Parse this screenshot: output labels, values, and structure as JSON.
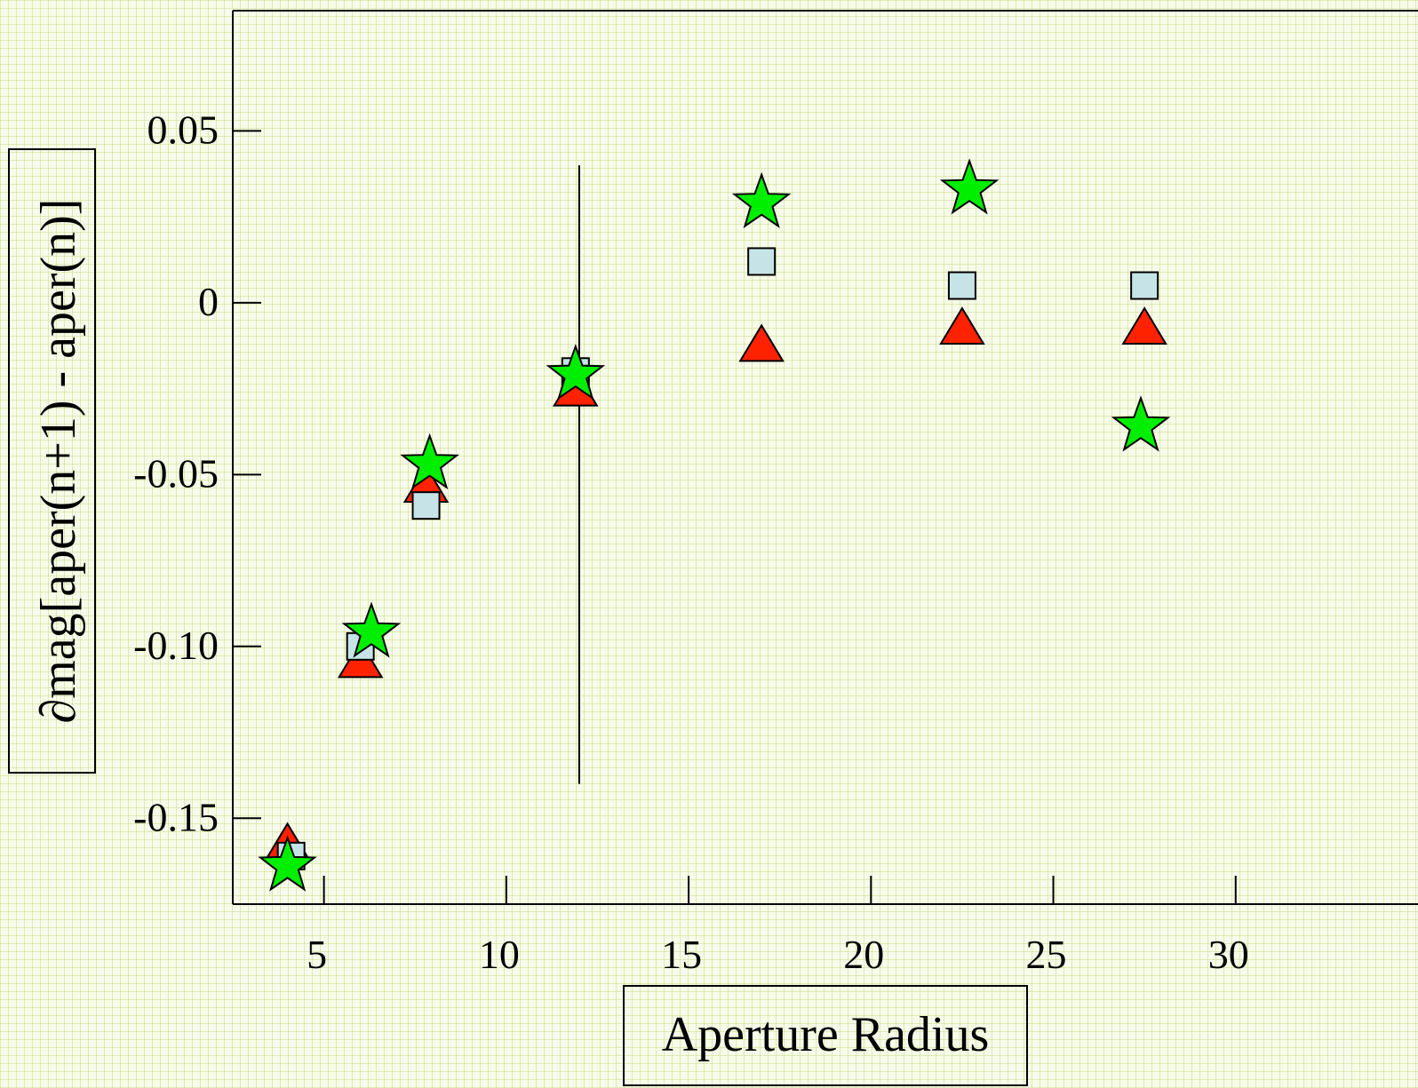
{
  "chart_data": {
    "type": "scatter",
    "xlabel": "Aperture Radius",
    "ylabel": "∂mag[aper(n+1) - aper(n)]",
    "xlim": [
      2.5,
      35
    ],
    "ylim": [
      -0.175,
      0.085
    ],
    "x_ticks": [
      "5",
      "10",
      "15",
      "20",
      "25",
      "30"
    ],
    "y_ticks": [
      "0.05",
      "0",
      "-0.05",
      "-0.10",
      "-0.15"
    ],
    "grid": true,
    "vertical_line": {
      "x": 12,
      "y_range": [
        -0.14,
        0.04
      ]
    },
    "series": [
      {
        "marker": "triangle",
        "color": "#ff2200",
        "points": [
          {
            "x": 4.0,
            "y": -0.158
          },
          {
            "x": 6.0,
            "y": -0.105
          },
          {
            "x": 7.8,
            "y": -0.054
          },
          {
            "x": 11.9,
            "y": -0.026
          },
          {
            "x": 17.0,
            "y": -0.013
          },
          {
            "x": 22.5,
            "y": -0.008
          },
          {
            "x": 27.5,
            "y": -0.008
          }
        ]
      },
      {
        "marker": "square",
        "color": "#c6e4e8",
        "points": [
          {
            "x": 4.1,
            "y": -0.161
          },
          {
            "x": 6.0,
            "y": -0.1
          },
          {
            "x": 7.8,
            "y": -0.059
          },
          {
            "x": 11.9,
            "y": -0.02
          },
          {
            "x": 17.0,
            "y": 0.012
          },
          {
            "x": 22.5,
            "y": 0.005
          },
          {
            "x": 27.5,
            "y": 0.005
          }
        ]
      },
      {
        "marker": "star",
        "color": "#00ee00",
        "points": [
          {
            "x": 4.0,
            "y": -0.164
          },
          {
            "x": 6.3,
            "y": -0.096
          },
          {
            "x": 7.9,
            "y": -0.047
          },
          {
            "x": 11.9,
            "y": -0.021
          },
          {
            "x": 17.0,
            "y": 0.029
          },
          {
            "x": 22.7,
            "y": 0.033
          },
          {
            "x": 27.4,
            "y": -0.036
          }
        ]
      }
    ]
  }
}
